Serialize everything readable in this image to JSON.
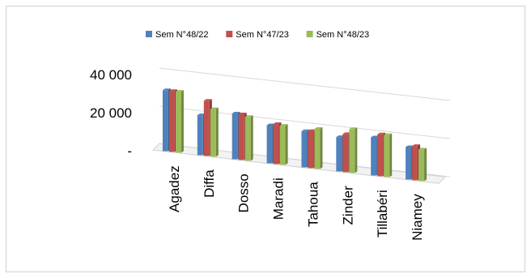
{
  "chart_data": {
    "type": "bar",
    "title": "",
    "xlabel": "",
    "ylabel": "",
    "categories": [
      "Agadez",
      "Diffa",
      "Dosso",
      "Maradi",
      "Tahoua",
      "Zinder",
      "Tillabéri",
      "Niamey"
    ],
    "series": [
      {
        "name": "Sem N°48/22",
        "color": "#4f81bd",
        "values": [
          32000,
          21000,
          24000,
          20000,
          19000,
          18000,
          20000,
          17000
        ]
      },
      {
        "name": "Sem N°47/23",
        "color": "#c0504d",
        "values": [
          32000,
          29000,
          24000,
          21000,
          19500,
          20000,
          22000,
          18000
        ]
      },
      {
        "name": "Sem N°48/23",
        "color": "#9bbb59",
        "values": [
          32000,
          25000,
          23000,
          20500,
          21000,
          23000,
          22000,
          16500
        ]
      }
    ],
    "y_ticks": [
      "40 000",
      "20 000",
      "-"
    ],
    "y_tick_values": [
      40000,
      20000,
      0
    ],
    "ylim": [
      0,
      40000
    ],
    "legend_position": "top",
    "grid": true
  }
}
